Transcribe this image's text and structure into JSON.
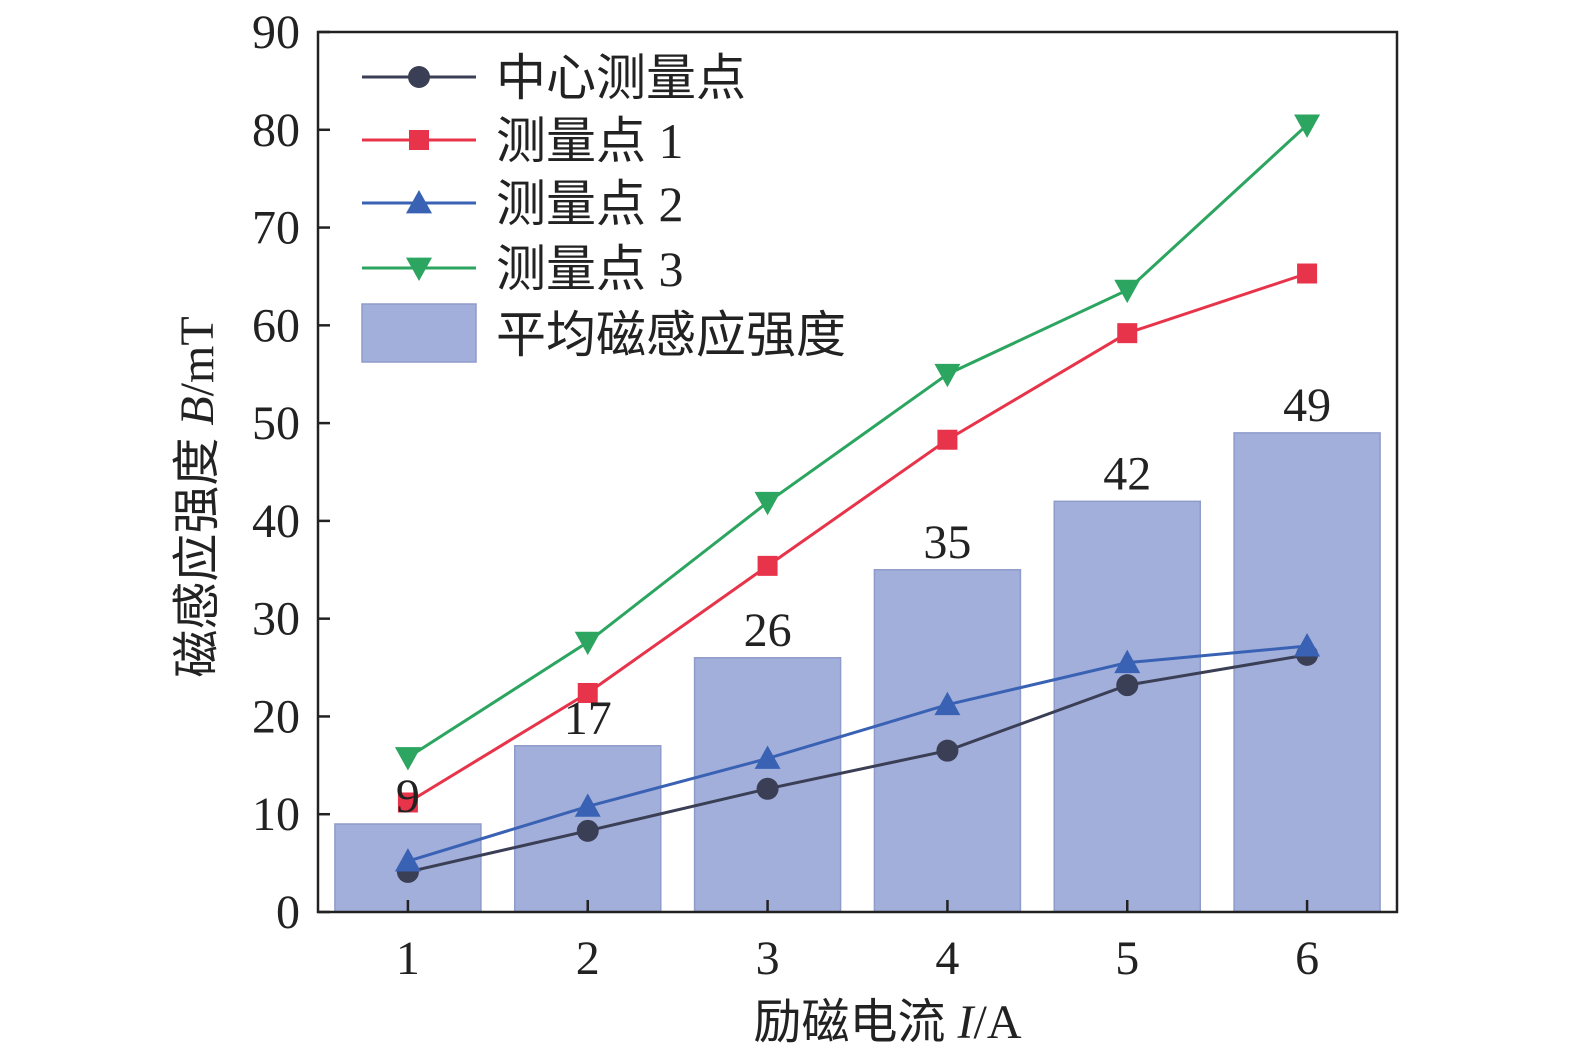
{
  "chart_data": {
    "type": "bar",
    "categories": [
      "1",
      "2",
      "3",
      "4",
      "5",
      "6"
    ],
    "x": [
      1,
      2,
      3,
      4,
      5,
      6
    ],
    "xlabel": {
      "main": "励磁电流 ",
      "var": "I",
      "unit": "/A"
    },
    "ylabel": {
      "main": "磁感应强度 ",
      "var": "B",
      "unit": "/mT"
    },
    "ylim": [
      0,
      90
    ],
    "yticks": [
      0,
      10,
      20,
      30,
      40,
      50,
      60,
      70,
      80,
      90
    ],
    "grid": false,
    "legend_position": "top-left",
    "bars": {
      "name": "平均磁感应强度",
      "values": [
        9,
        17,
        26,
        35,
        42,
        49
      ],
      "data_labels": [
        "9",
        "17",
        "26",
        "35",
        "42",
        "49"
      ],
      "color": "#a3afdb"
    },
    "series": [
      {
        "name": "中心测量点",
        "type": "line",
        "marker": "circle",
        "color": "#3a3f55",
        "values": [
          4.1,
          8.3,
          12.6,
          16.5,
          23.2,
          26.3
        ]
      },
      {
        "name": "测量点 1",
        "type": "line",
        "marker": "square",
        "color": "#e8344a",
        "values": [
          11.2,
          22.4,
          35.4,
          48.3,
          59.2,
          65.3
        ]
      },
      {
        "name": "测量点 2",
        "type": "line",
        "marker": "triangle-up",
        "color": "#3a62b4",
        "values": [
          5.2,
          10.8,
          15.7,
          21.2,
          25.5,
          27.2
        ]
      },
      {
        "name": "测量点 3",
        "type": "line",
        "marker": "triangle-down",
        "color": "#2ba55f",
        "values": [
          15.8,
          27.6,
          41.9,
          55.0,
          63.6,
          80.5
        ]
      }
    ]
  }
}
